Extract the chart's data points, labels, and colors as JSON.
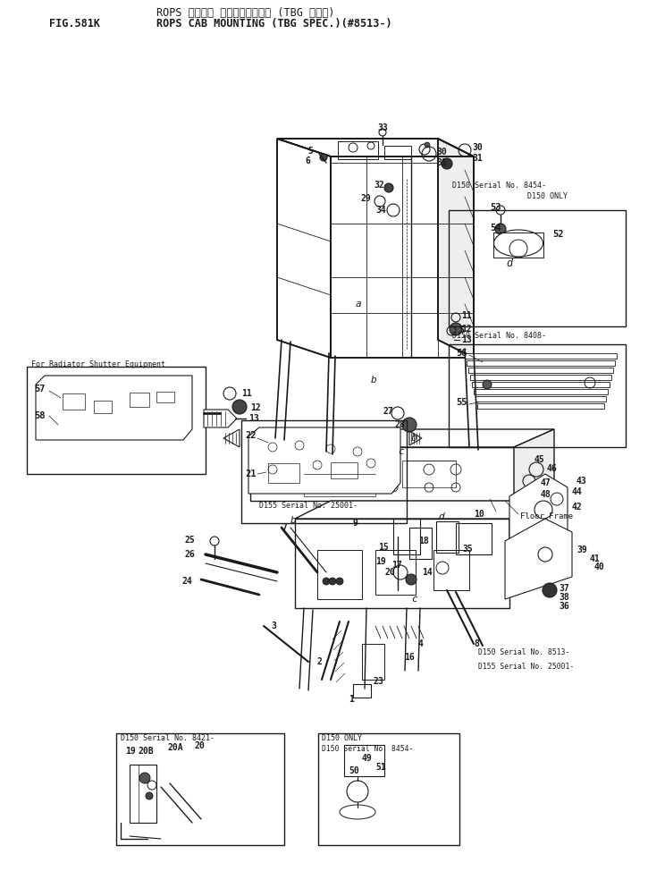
{
  "title_jp": "ROPS キャブ゚ マウンティンク゚ (TBG シヨウ)",
  "title_en": "ROPS CAB MOUNTING (TBG SPEC.)(#8513-)",
  "fig_label": "FIG.581K",
  "bg_color": "#ffffff",
  "line_color": "#1a1a1a",
  "text_color": "#1a1a1a",
  "font_family": "monospace",
  "title_fontsize": 8.5,
  "fig_label_fontsize": 8.5,
  "annotation_fontsize": 7.0,
  "page_width": 7.25,
  "page_height": 9.93,
  "dpi": 100
}
